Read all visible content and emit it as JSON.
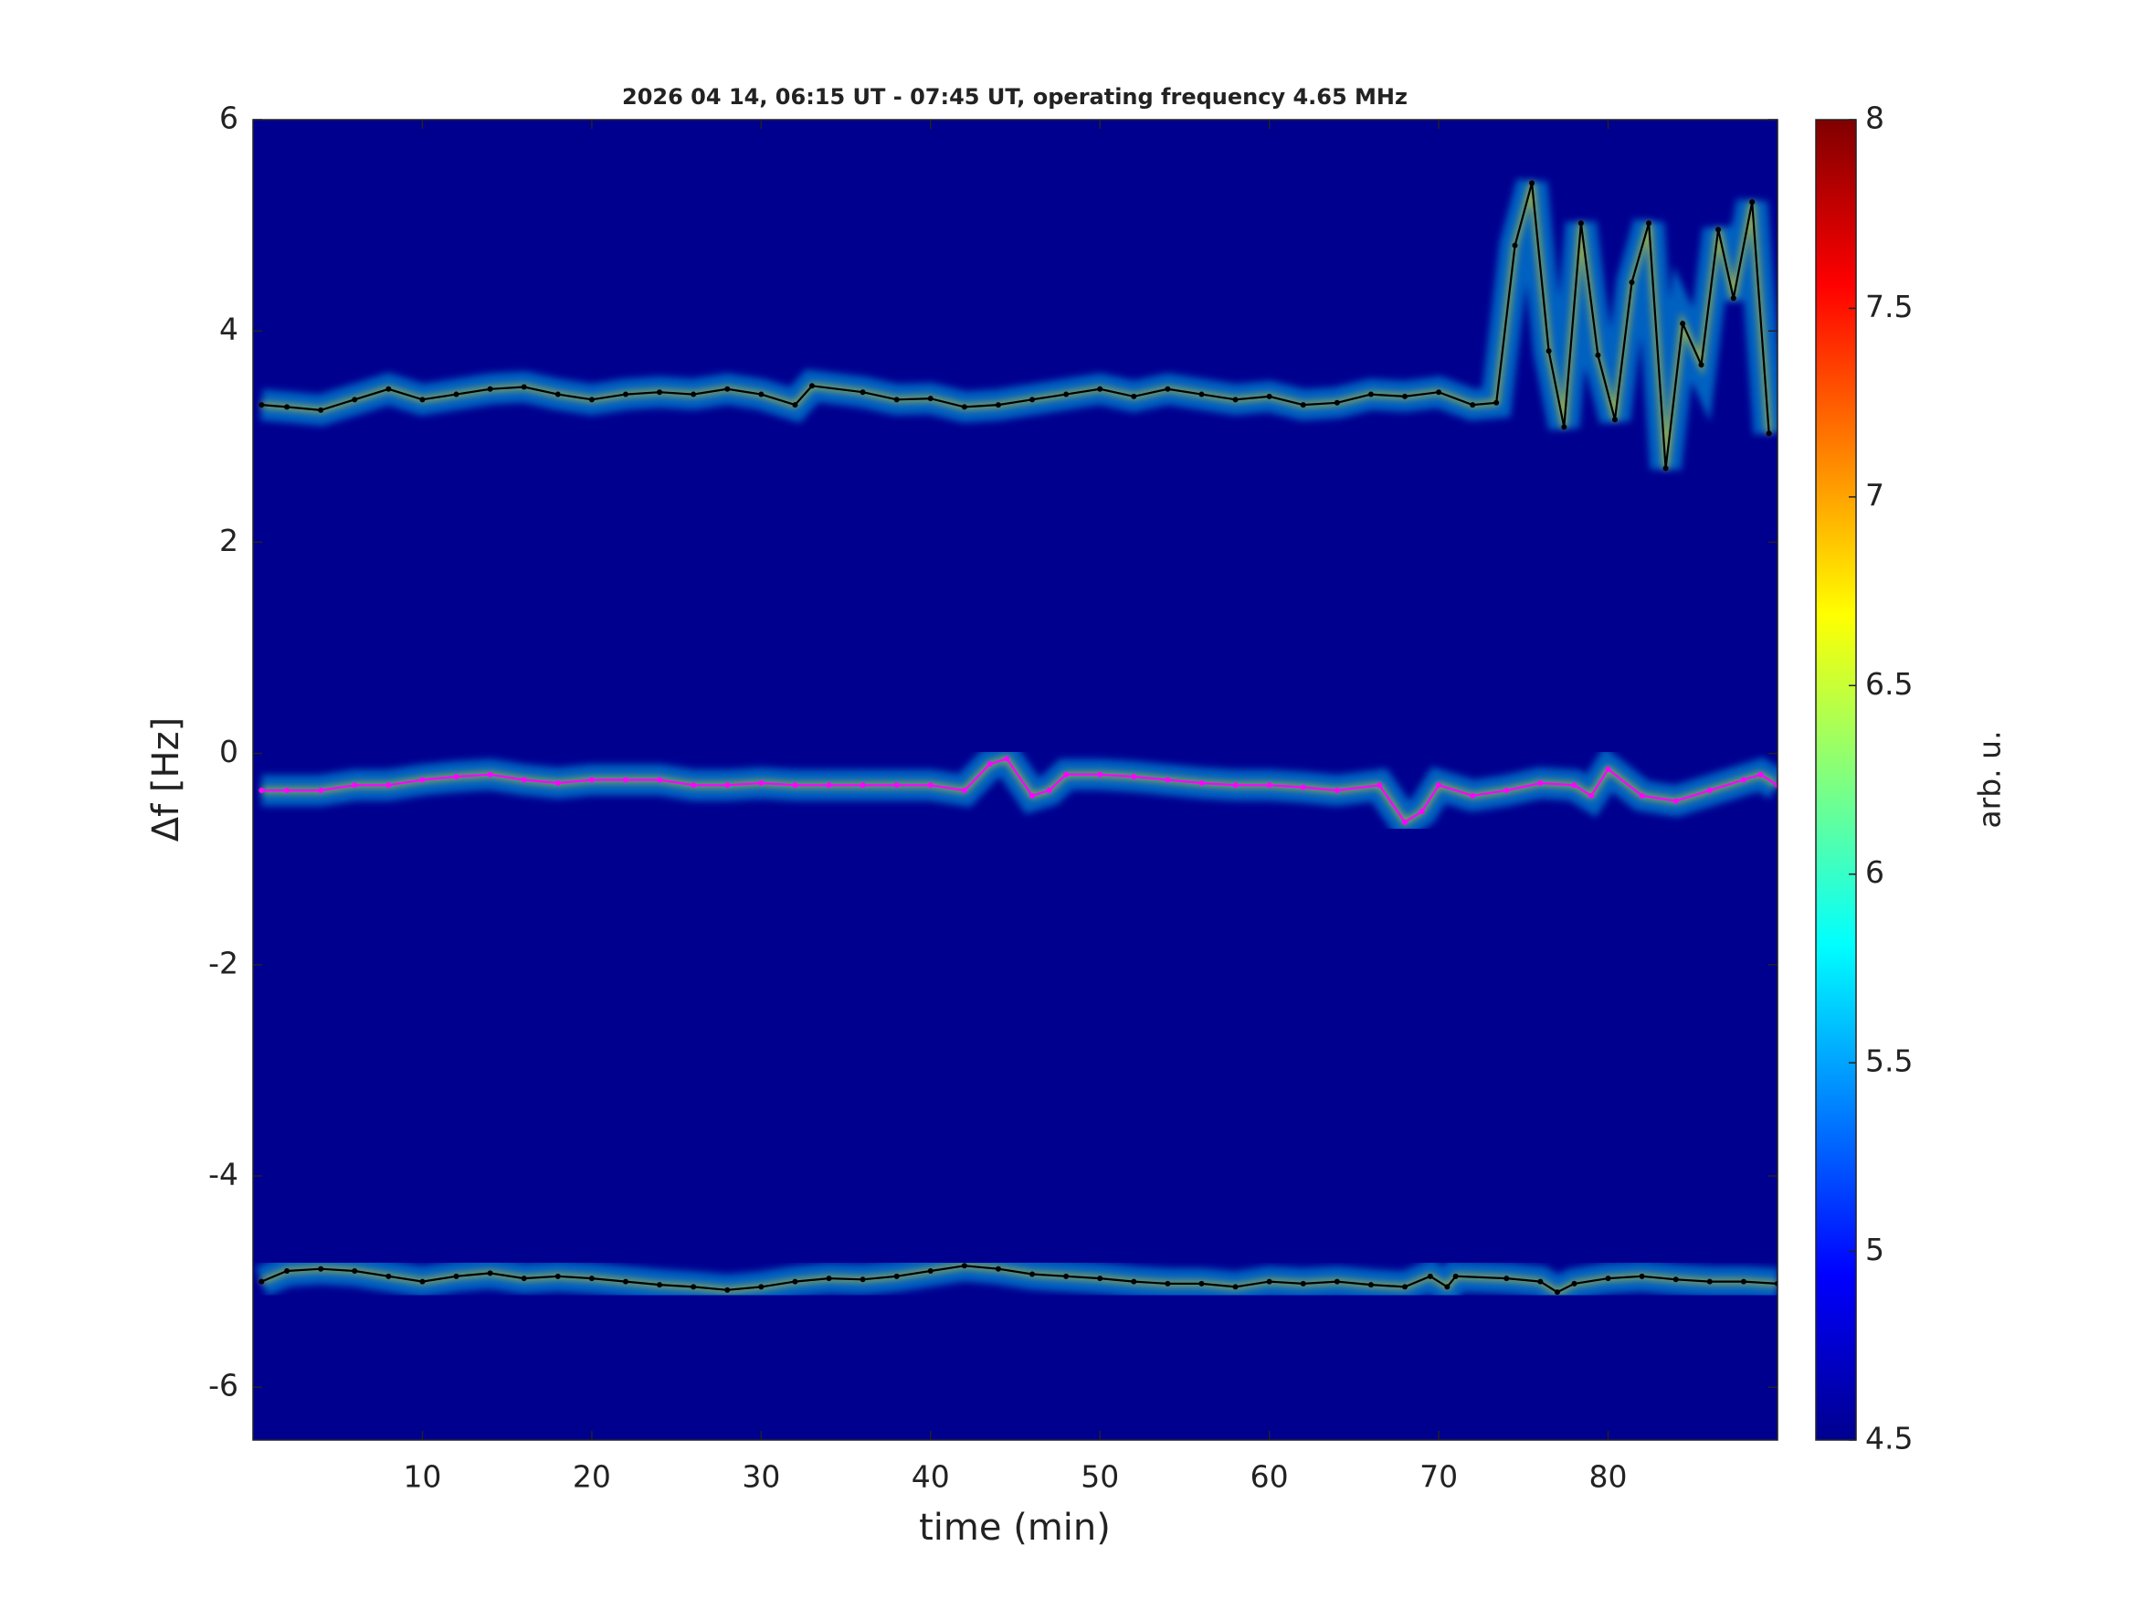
{
  "chart_data": {
    "type": "spectrogram",
    "title": "2026 04 14, 06:15 UT - 07:45 UT, operating frequency 4.65 MHz",
    "x_label": "time (min)",
    "y_label": "Δf [Hz]",
    "xlim": [
      0,
      90
    ],
    "xticks": [
      10,
      20,
      30,
      40,
      50,
      60,
      70,
      80
    ],
    "ylim": [
      -6.5,
      6
    ],
    "yticks": [
      -6,
      -4,
      -2,
      0,
      2,
      4,
      6
    ],
    "background": "#00008f",
    "colorbar": {
      "label": "arb. u.",
      "lim": [
        4.5,
        8
      ],
      "ticks": [
        4.5,
        5,
        5.5,
        6,
        6.5,
        7,
        7.5,
        8
      ],
      "colormap": "jet"
    },
    "series": [
      {
        "color": "#000000",
        "x": [
          0.5,
          2,
          4,
          6,
          8,
          10,
          12,
          14,
          16,
          18,
          20,
          22,
          24,
          26,
          28,
          30,
          32,
          33,
          36,
          38,
          40,
          42,
          44,
          46,
          48,
          50,
          52,
          54,
          56,
          58,
          60,
          62,
          64,
          66,
          68,
          70,
          72,
          73.4,
          74.5,
          75.5,
          76.5,
          77.4,
          78.4,
          79.4,
          80.4,
          81.4,
          82.4,
          83.4,
          84.4,
          85.5,
          86.5,
          87.4,
          88.5,
          89.5
        ],
        "values": [
          3.3,
          3.28,
          3.25,
          3.35,
          3.45,
          3.35,
          3.4,
          3.45,
          3.47,
          3.4,
          3.35,
          3.4,
          3.42,
          3.4,
          3.45,
          3.4,
          3.3,
          3.48,
          3.42,
          3.35,
          3.36,
          3.28,
          3.3,
          3.35,
          3.4,
          3.45,
          3.38,
          3.45,
          3.4,
          3.35,
          3.38,
          3.3,
          3.32,
          3.4,
          3.38,
          3.42,
          3.3,
          3.32,
          4.81,
          5.4,
          3.81,
          3.09,
          5.02,
          3.77,
          3.16,
          4.46,
          5.02,
          2.7,
          4.07,
          3.68,
          4.96,
          4.31,
          5.22,
          3.03
        ]
      },
      {
        "color": "#ff00ff",
        "x": [
          0.5,
          2,
          4,
          6,
          8,
          10,
          12,
          14,
          16,
          18,
          20,
          22,
          24,
          26,
          28,
          30,
          32,
          34,
          36,
          38,
          40,
          42,
          43.5,
          44.5,
          46,
          47,
          48,
          50,
          52,
          54,
          56,
          58,
          60,
          62,
          64,
          66.5,
          68,
          69,
          70,
          72,
          74,
          76,
          78,
          79,
          80,
          82,
          84,
          86,
          88,
          89,
          90
        ],
        "values": [
          -0.35,
          -0.35,
          -0.35,
          -0.3,
          -0.3,
          -0.25,
          -0.22,
          -0.2,
          -0.25,
          -0.28,
          -0.25,
          -0.25,
          -0.25,
          -0.3,
          -0.3,
          -0.28,
          -0.3,
          -0.3,
          -0.3,
          -0.3,
          -0.3,
          -0.35,
          -0.1,
          -0.05,
          -0.4,
          -0.35,
          -0.2,
          -0.2,
          -0.22,
          -0.25,
          -0.28,
          -0.3,
          -0.3,
          -0.32,
          -0.35,
          -0.3,
          -0.65,
          -0.55,
          -0.3,
          -0.4,
          -0.35,
          -0.28,
          -0.3,
          -0.4,
          -0.15,
          -0.4,
          -0.45,
          -0.35,
          -0.25,
          -0.2,
          -0.3
        ]
      },
      {
        "color": "#000000",
        "x": [
          0.5,
          2,
          4,
          6,
          8,
          10,
          12,
          14,
          16,
          18,
          20,
          22,
          24,
          26,
          28,
          30,
          32,
          34,
          36,
          38,
          40,
          42,
          44,
          46,
          48,
          50,
          52,
          54,
          56,
          58,
          60,
          62,
          64,
          66,
          68,
          69.5,
          70.5,
          71,
          74,
          76,
          77,
          78,
          80,
          82,
          84,
          86,
          88,
          90
        ],
        "values": [
          -5,
          -4.9,
          -4.88,
          -4.9,
          -4.95,
          -5,
          -4.95,
          -4.92,
          -4.97,
          -4.95,
          -4.97,
          -5,
          -5.03,
          -5.05,
          -5.08,
          -5.05,
          -5,
          -4.97,
          -4.98,
          -4.95,
          -4.9,
          -4.85,
          -4.88,
          -4.93,
          -4.95,
          -4.97,
          -5,
          -5.02,
          -5.02,
          -5.05,
          -5,
          -5.02,
          -5,
          -5.03,
          -5.05,
          -4.95,
          -5.05,
          -4.95,
          -4.97,
          -5,
          -5.1,
          -5.02,
          -4.97,
          -4.95,
          -4.98,
          -5,
          -5,
          -5.02
        ]
      }
    ]
  }
}
